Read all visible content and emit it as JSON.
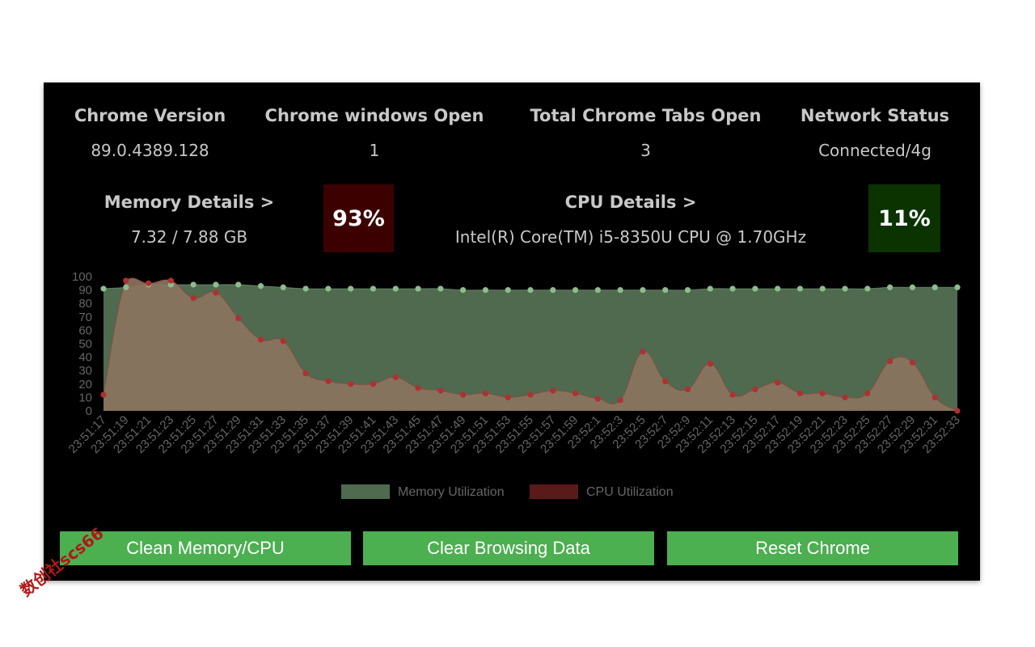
{
  "header": {
    "chrome_version": {
      "label": "Chrome Version",
      "value": "89.0.4389.128"
    },
    "windows_open": {
      "label": "Chrome windows Open",
      "value": "1"
    },
    "tabs_open": {
      "label": "Total Chrome Tabs Open",
      "value": "3"
    },
    "network": {
      "label": "Network Status",
      "value": "Connected/4g"
    }
  },
  "memory": {
    "label": "Memory Details >",
    "value": "7.32 / 7.88 GB",
    "percent": "93%",
    "badge_color": "#3d0000"
  },
  "cpu": {
    "label": "CPU Details >",
    "value": "Intel(R) Core(TM) i5-8350U CPU @ 1.70GHz",
    "percent": "11%",
    "badge_color": "#0a3300"
  },
  "buttons": {
    "clean": "Clean Memory/CPU",
    "clear": "Clear Browsing Data",
    "reset": "Reset Chrome"
  },
  "watermark": "数创社scs66",
  "chart_data": {
    "type": "area",
    "x": [
      "23:51:17",
      "23:51:19",
      "23:51:21",
      "23:51:23",
      "23:51:25",
      "23:51:27",
      "23:51:29",
      "23:51:31",
      "23:51:33",
      "23:51:35",
      "23:51:37",
      "23:51:39",
      "23:51:41",
      "23:51:43",
      "23:51:45",
      "23:51:47",
      "23:51:49",
      "23:51:51",
      "23:51:53",
      "23:51:55",
      "23:51:57",
      "23:51:59",
      "23:52:1",
      "23:52:3",
      "23:52:5",
      "23:52:7",
      "23:52:9",
      "23:52:11",
      "23:52:13",
      "23:52:15",
      "23:52:17",
      "23:52:19",
      "23:52:21",
      "23:52:23",
      "23:52:25",
      "23:52:27",
      "23:52:29",
      "23:52:31",
      "23:52:33"
    ],
    "yticks": [
      0,
      10,
      20,
      30,
      40,
      50,
      60,
      70,
      80,
      90,
      100
    ],
    "ylim": [
      0,
      100
    ],
    "legend_position": "bottom",
    "series": [
      {
        "name": "Memory Utilization",
        "fill": "#4f6a4f",
        "point": "#8fbc8f",
        "values": [
          91,
          92,
          94,
          94,
          94,
          94,
          94,
          93,
          92,
          91,
          91,
          91,
          91,
          91,
          91,
          91,
          90,
          90,
          90,
          90,
          90,
          90,
          90,
          90,
          90,
          90,
          90,
          91,
          91,
          91,
          91,
          91,
          91,
          91,
          91,
          92,
          92,
          92,
          92
        ]
      },
      {
        "name": "CPU Utilization",
        "fill": "#5a1a1a",
        "point": "#b03030",
        "values": [
          12,
          97,
          95,
          97,
          84,
          88,
          69,
          53,
          52,
          28,
          22,
          20,
          20,
          25,
          17,
          15,
          12,
          13,
          10,
          12,
          15,
          13,
          9,
          8,
          44,
          22,
          16,
          35,
          12,
          16,
          21,
          13,
          13,
          10,
          13,
          37,
          36,
          10,
          0
        ]
      }
    ]
  }
}
